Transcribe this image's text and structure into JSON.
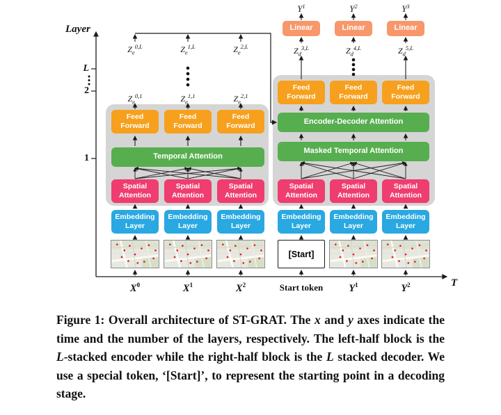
{
  "figure": {
    "axis": {
      "y_label": "Layer",
      "x_label": "T",
      "y_tick_1": "1",
      "y_tick_2": "2",
      "y_tick_L": "L"
    },
    "x_ticks": [
      {
        "base": "X",
        "sup": "0"
      },
      {
        "base": "X",
        "sup": "1"
      },
      {
        "base": "X",
        "sup": "2"
      },
      {
        "base": "Start token",
        "sup": ""
      },
      {
        "base": "Y",
        "sup": "1"
      },
      {
        "base": "Y",
        "sup": "2"
      }
    ],
    "encoder": {
      "feed_forward": "Feed Forward",
      "temporal_attention": "Temporal Attention",
      "spatial_attention": "Spatial Attention",
      "embedding_layer": "Embedding Layer",
      "z_layer1": [
        {
          "base": "Z",
          "sub": "e",
          "sup": "0,1"
        },
        {
          "base": "Z",
          "sub": "e",
          "sup": "1,1"
        },
        {
          "base": "Z",
          "sub": "e",
          "sup": "2,1"
        }
      ],
      "z_layerL": [
        {
          "base": "Z",
          "sub": "e",
          "sup": "0,L"
        },
        {
          "base": "Z",
          "sub": "e",
          "sup": "1,L"
        },
        {
          "base": "Z",
          "sub": "e",
          "sup": "2,L"
        }
      ]
    },
    "decoder": {
      "feed_forward": "Feed Forward",
      "encoder_decoder_attention": "Encoder-Decoder Attention",
      "masked_temporal_attention": "Masked Temporal Attention",
      "spatial_attention": "Spatial Attention",
      "embedding_layer": "Embedding Layer",
      "start_token": "[Start]",
      "linear": "Linear",
      "z_layerL": [
        {
          "base": "Z",
          "sub": "d",
          "sup": "3,L"
        },
        {
          "base": "Z",
          "sub": "d",
          "sup": "4,L"
        },
        {
          "base": "Z",
          "sub": "d",
          "sup": "5,L"
        }
      ],
      "outputs": [
        {
          "base": "Y",
          "sup": "1"
        },
        {
          "base": "Y",
          "sup": "2"
        },
        {
          "base": "Y",
          "sup": "3"
        }
      ]
    },
    "colors": {
      "feed_forward_orange": "#F6A01D",
      "attention_green": "#57AE4F",
      "spatial_pink": "#EE3D6E",
      "embedding_blue": "#29A8E1",
      "linear_coral": "#F7976B",
      "block_gray": "#D5D5D5",
      "marker_red": "#E01F1F"
    }
  },
  "caption": {
    "s1": "Figure 1: Overall architecture of ST-GRAT. The ",
    "s2": "x",
    "s3": " and ",
    "s4": "y",
    "s5": " axes indicate the time and the number of the layers, respectively. The left-half block is the ",
    "s6": "L",
    "s7": "-stacked encoder while the right-half block is the ",
    "s8": "L",
    "s9": " stacked decoder. We use a special token, ‘[Start]’, to represent the starting point in a decoding stage."
  }
}
